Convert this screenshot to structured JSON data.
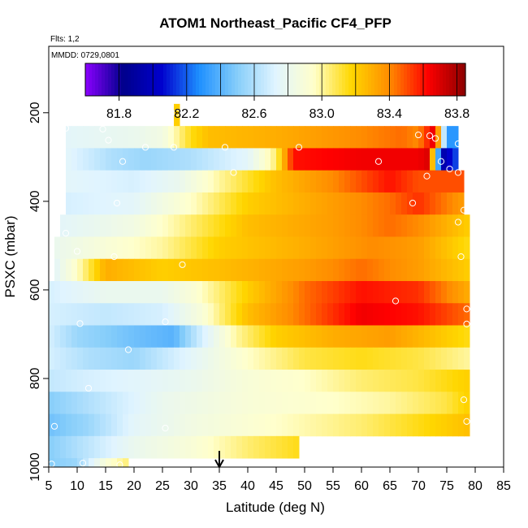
{
  "chart_data": {
    "type": "heatmap",
    "title": "ATOM1 Northeast_Pacific CF4_PFP",
    "flights_label": "Flts: 1,2",
    "date_label": "MMDD: 0729,0801",
    "xlabel": "Latitude (deg N)",
    "ylabel": "PSXC (mbar)",
    "xlim": [
      5,
      85
    ],
    "ylim": [
      1000,
      50
    ],
    "x_ticks": [
      5,
      10,
      15,
      20,
      25,
      30,
      35,
      40,
      45,
      50,
      55,
      60,
      65,
      70,
      75,
      80,
      85
    ],
    "y_ticks": [
      200,
      400,
      600,
      800,
      1000
    ],
    "colorbar": {
      "range": [
        81.6,
        83.85
      ],
      "tick_values": [
        81.8,
        82.2,
        82.6,
        83.0,
        83.4,
        83.8
      ],
      "tick_labels": [
        "81.8",
        "82.2",
        "82.6",
        "83.0",
        "83.4",
        "83.8"
      ],
      "colors": [
        "#8b00ff",
        "#00008b",
        "#0000cd",
        "#1e90ff",
        "#87cefa",
        "#e0f4ff",
        "#ffffcc",
        "#ffd700",
        "#ff8c00",
        "#ff0000",
        "#8b0000"
      ]
    },
    "marker_latitude": 35,
    "rows": [
      {
        "p_top": 180,
        "p_bot": 230,
        "lat_min": 27,
        "lat_max": 28,
        "values": [
          [
            27,
            83.2
          ]
        ]
      },
      {
        "p_top": 230,
        "p_bot": 280,
        "lat_min": 8,
        "lat_max": 77,
        "values": [
          [
            8,
            82.75
          ],
          [
            20,
            82.8
          ],
          [
            25,
            82.85
          ],
          [
            30,
            83.15
          ],
          [
            33,
            83.25
          ],
          [
            45,
            83.3
          ],
          [
            60,
            83.4
          ],
          [
            67,
            83.45
          ],
          [
            70,
            83.4
          ],
          [
            73,
            83.7
          ],
          [
            75,
            82.3
          ],
          [
            77,
            82.3
          ]
        ]
      },
      {
        "p_top": 280,
        "p_bot": 330,
        "lat_min": 8,
        "lat_max": 77,
        "values": [
          [
            8,
            82.75
          ],
          [
            16,
            82.6
          ],
          [
            22,
            82.55
          ],
          [
            30,
            82.6
          ],
          [
            40,
            82.75
          ],
          [
            45,
            83.05
          ],
          [
            48,
            83.6
          ],
          [
            60,
            83.65
          ],
          [
            70,
            83.65
          ],
          [
            72,
            83.7
          ],
          [
            74,
            81.9
          ],
          [
            77,
            82.2
          ]
        ]
      },
      {
        "p_top": 330,
        "p_bot": 380,
        "lat_min": 8,
        "lat_max": 78,
        "values": [
          [
            8,
            82.75
          ],
          [
            20,
            82.7
          ],
          [
            28,
            82.8
          ],
          [
            35,
            83.0
          ],
          [
            45,
            83.25
          ],
          [
            55,
            83.4
          ],
          [
            65,
            83.6
          ],
          [
            70,
            83.5
          ],
          [
            78,
            83.5
          ]
        ]
      },
      {
        "p_top": 380,
        "p_bot": 430,
        "lat_min": 8,
        "lat_max": 78,
        "values": [
          [
            8,
            82.7
          ],
          [
            20,
            82.75
          ],
          [
            30,
            82.95
          ],
          [
            40,
            83.2
          ],
          [
            55,
            83.35
          ],
          [
            65,
            83.45
          ],
          [
            70,
            83.55
          ],
          [
            78,
            83.35
          ]
        ]
      },
      {
        "p_top": 430,
        "p_bot": 480,
        "lat_min": 7,
        "lat_max": 79,
        "values": [
          [
            7,
            82.75
          ],
          [
            20,
            82.85
          ],
          [
            30,
            83.05
          ],
          [
            40,
            83.25
          ],
          [
            55,
            83.35
          ],
          [
            65,
            83.45
          ],
          [
            70,
            83.4
          ],
          [
            79,
            83.2
          ]
        ]
      },
      {
        "p_top": 480,
        "p_bot": 530,
        "lat_min": 6,
        "lat_max": 79,
        "values": [
          [
            6,
            82.8
          ],
          [
            15,
            82.9
          ],
          [
            25,
            83.0
          ],
          [
            35,
            83.2
          ],
          [
            50,
            83.3
          ],
          [
            62,
            83.4
          ],
          [
            70,
            83.35
          ],
          [
            79,
            83.15
          ]
        ]
      },
      {
        "p_top": 530,
        "p_bot": 580,
        "lat_min": 6,
        "lat_max": 79,
        "values": [
          [
            6,
            82.75
          ],
          [
            10,
            82.95
          ],
          [
            15,
            83.3
          ],
          [
            25,
            83.2
          ],
          [
            35,
            83.25
          ],
          [
            50,
            83.35
          ],
          [
            60,
            83.45
          ],
          [
            70,
            83.35
          ],
          [
            79,
            83.2
          ]
        ]
      },
      {
        "p_top": 580,
        "p_bot": 630,
        "lat_min": 5,
        "lat_max": 79,
        "values": [
          [
            5,
            82.7
          ],
          [
            15,
            82.8
          ],
          [
            25,
            82.8
          ],
          [
            30,
            82.9
          ],
          [
            40,
            83.2
          ],
          [
            50,
            83.45
          ],
          [
            60,
            83.6
          ],
          [
            70,
            83.55
          ],
          [
            79,
            83.3
          ]
        ]
      },
      {
        "p_top": 630,
        "p_bot": 680,
        "lat_min": 5,
        "lat_max": 79,
        "values": [
          [
            5,
            82.7
          ],
          [
            15,
            82.65
          ],
          [
            25,
            82.7
          ],
          [
            32,
            82.9
          ],
          [
            40,
            83.25
          ],
          [
            50,
            83.45
          ],
          [
            60,
            83.65
          ],
          [
            70,
            83.6
          ],
          [
            79,
            83.45
          ]
        ]
      },
      {
        "p_top": 680,
        "p_bot": 730,
        "lat_min": 5,
        "lat_max": 79,
        "values": [
          [
            5,
            82.7
          ],
          [
            10,
            82.55
          ],
          [
            20,
            82.45
          ],
          [
            27,
            82.4
          ],
          [
            32,
            82.7
          ],
          [
            38,
            83.0
          ],
          [
            45,
            83.2
          ],
          [
            55,
            83.3
          ],
          [
            65,
            83.35
          ],
          [
            79,
            83.15
          ]
        ]
      },
      {
        "p_top": 730,
        "p_bot": 780,
        "lat_min": 5,
        "lat_max": 79,
        "values": [
          [
            5,
            82.7
          ],
          [
            12,
            82.6
          ],
          [
            20,
            82.55
          ],
          [
            30,
            82.75
          ],
          [
            40,
            82.95
          ],
          [
            50,
            83.1
          ],
          [
            60,
            83.15
          ],
          [
            70,
            83.1
          ],
          [
            79,
            83.0
          ]
        ]
      },
      {
        "p_top": 780,
        "p_bot": 830,
        "lat_min": 5,
        "lat_max": 79,
        "values": [
          [
            5,
            82.65
          ],
          [
            12,
            82.7
          ],
          [
            22,
            82.75
          ],
          [
            30,
            82.8
          ],
          [
            40,
            82.9
          ],
          [
            50,
            82.95
          ],
          [
            60,
            83.05
          ],
          [
            70,
            83.1
          ],
          [
            79,
            83.2
          ]
        ]
      },
      {
        "p_top": 830,
        "p_bot": 880,
        "lat_min": 5,
        "lat_max": 79,
        "values": [
          [
            5,
            82.5
          ],
          [
            15,
            82.65
          ],
          [
            25,
            82.8
          ],
          [
            40,
            82.9
          ],
          [
            55,
            82.95
          ],
          [
            65,
            83.0
          ],
          [
            75,
            83.1
          ],
          [
            79,
            83.2
          ]
        ]
      },
      {
        "p_top": 880,
        "p_bot": 930,
        "lat_min": 5,
        "lat_max": 79,
        "values": [
          [
            5,
            82.45
          ],
          [
            12,
            82.55
          ],
          [
            20,
            82.75
          ],
          [
            30,
            82.85
          ],
          [
            45,
            82.95
          ],
          [
            60,
            83.05
          ],
          [
            70,
            83.15
          ],
          [
            79,
            83.25
          ]
        ]
      },
      {
        "p_top": 930,
        "p_bot": 980,
        "lat_min": 5,
        "lat_max": 49,
        "values": [
          [
            5,
            82.5
          ],
          [
            10,
            82.6
          ],
          [
            20,
            82.8
          ],
          [
            30,
            82.9
          ],
          [
            40,
            83.05
          ],
          [
            49,
            83.15
          ]
        ]
      },
      {
        "p_top": 980,
        "p_bot": 1000,
        "lat_min": 5,
        "lat_max": 19,
        "values": [
          [
            5,
            82.5
          ],
          [
            10,
            82.55
          ],
          [
            15,
            82.9
          ],
          [
            19,
            83.05
          ]
        ]
      }
    ],
    "points": [
      [
        8,
        235
      ],
      [
        14.5,
        237
      ],
      [
        15.5,
        262
      ],
      [
        27.5,
        200
      ],
      [
        67.5,
        215
      ],
      [
        70,
        250
      ],
      [
        73,
        258
      ],
      [
        27,
        278
      ],
      [
        36,
        278
      ],
      [
        22,
        278
      ],
      [
        49,
        278
      ],
      [
        72,
        252
      ],
      [
        77,
        270
      ],
      [
        18,
        310
      ],
      [
        74,
        310
      ],
      [
        63,
        310
      ],
      [
        75.5,
        327
      ],
      [
        77,
        335
      ],
      [
        37.5,
        335
      ],
      [
        71.5,
        343
      ],
      [
        17,
        404
      ],
      [
        69,
        404
      ],
      [
        78,
        420
      ],
      [
        77,
        447
      ],
      [
        8,
        472
      ],
      [
        10,
        513
      ],
      [
        16.5,
        525
      ],
      [
        77.5,
        525
      ],
      [
        28.5,
        543
      ],
      [
        78.5,
        643
      ],
      [
        66,
        625
      ],
      [
        10.5,
        676
      ],
      [
        25.5,
        672
      ],
      [
        78.5,
        677
      ],
      [
        19,
        735
      ],
      [
        12,
        822
      ],
      [
        78,
        848
      ],
      [
        6,
        908
      ],
      [
        25.5,
        912
      ],
      [
        78.5,
        897
      ],
      [
        11,
        991
      ],
      [
        17.5,
        995
      ],
      [
        5.5,
        993
      ]
    ]
  }
}
